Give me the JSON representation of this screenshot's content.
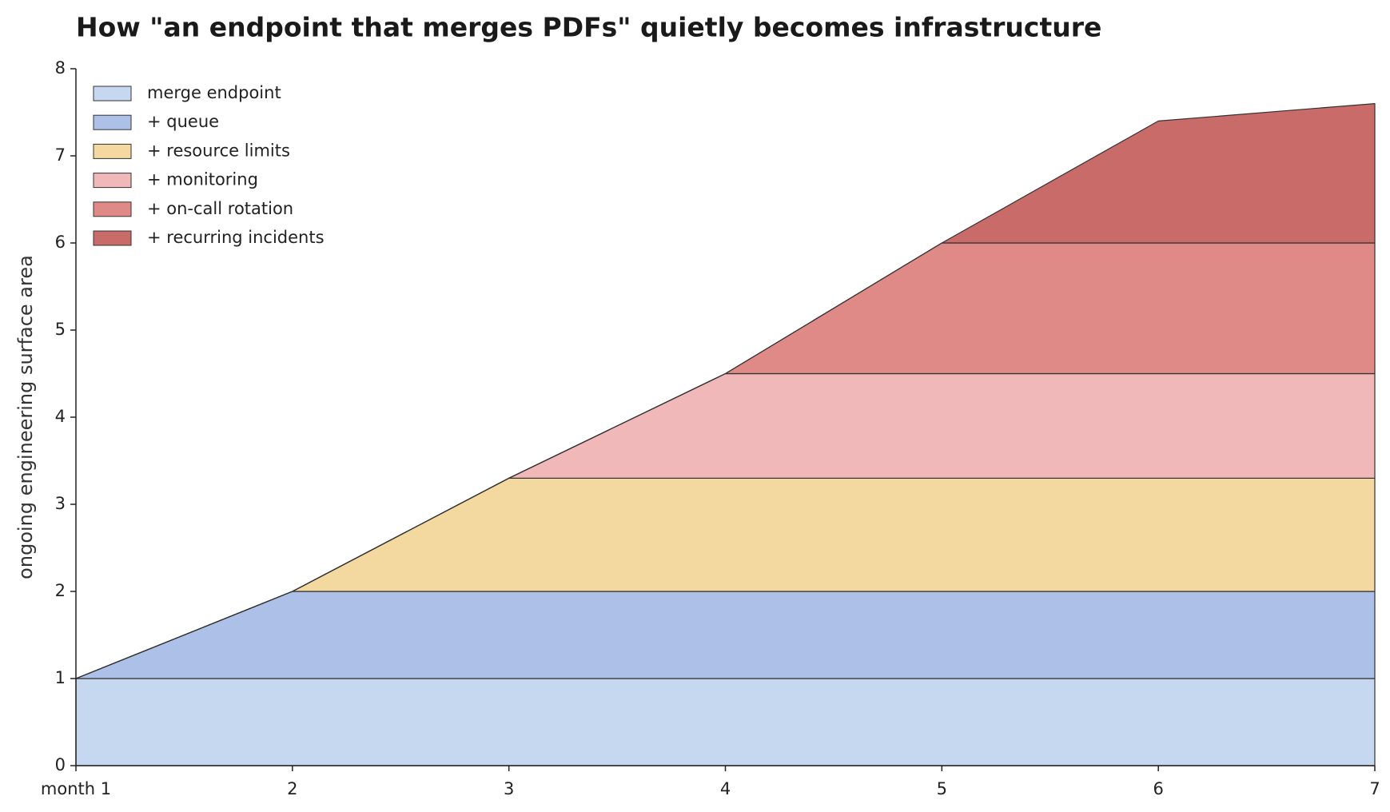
{
  "chart_data": {
    "type": "stacked_area",
    "title": "How \"an endpoint that merges PDFs\" quietly becomes infrastructure",
    "y_label": "ongoing engineering surface area",
    "x": [
      1,
      2,
      3,
      4,
      5,
      6,
      7
    ],
    "xlim": [
      1,
      7
    ],
    "xticks": [
      {
        "value": 1,
        "label": "month 1"
      },
      2,
      3,
      4,
      5,
      6,
      7
    ],
    "ylim": [
      0,
      8
    ],
    "yticks": [
      0,
      1,
      2,
      3,
      4,
      5,
      6,
      7,
      8
    ],
    "grid": false,
    "legend": "upper left",
    "series": [
      {
        "name": "merge endpoint",
        "color": "#c6d7f0",
        "values": [
          1,
          1,
          1,
          1,
          1,
          1,
          1
        ]
      },
      {
        "name": "+ queue",
        "color": "#adc1e8",
        "values": [
          0,
          1,
          1,
          1,
          1,
          1,
          1
        ]
      },
      {
        "name": "+ resource limits",
        "color": "#f3d9a0",
        "values": [
          0,
          0,
          1.3,
          1.3,
          1.3,
          1.3,
          1.3
        ]
      },
      {
        "name": "+ monitoring",
        "color": "#f0b8b8",
        "values": [
          0,
          0,
          0,
          1.2,
          1.2,
          1.2,
          1.2
        ]
      },
      {
        "name": "+ on-call rotation",
        "color": "#e08a87",
        "values": [
          0,
          0,
          0,
          0,
          1.5,
          1.5,
          1.5
        ]
      },
      {
        "name": "+ recurring incidents",
        "color": "#c96b69",
        "values": [
          0,
          0,
          0,
          0,
          0,
          1.4,
          1.6
        ]
      }
    ]
  }
}
